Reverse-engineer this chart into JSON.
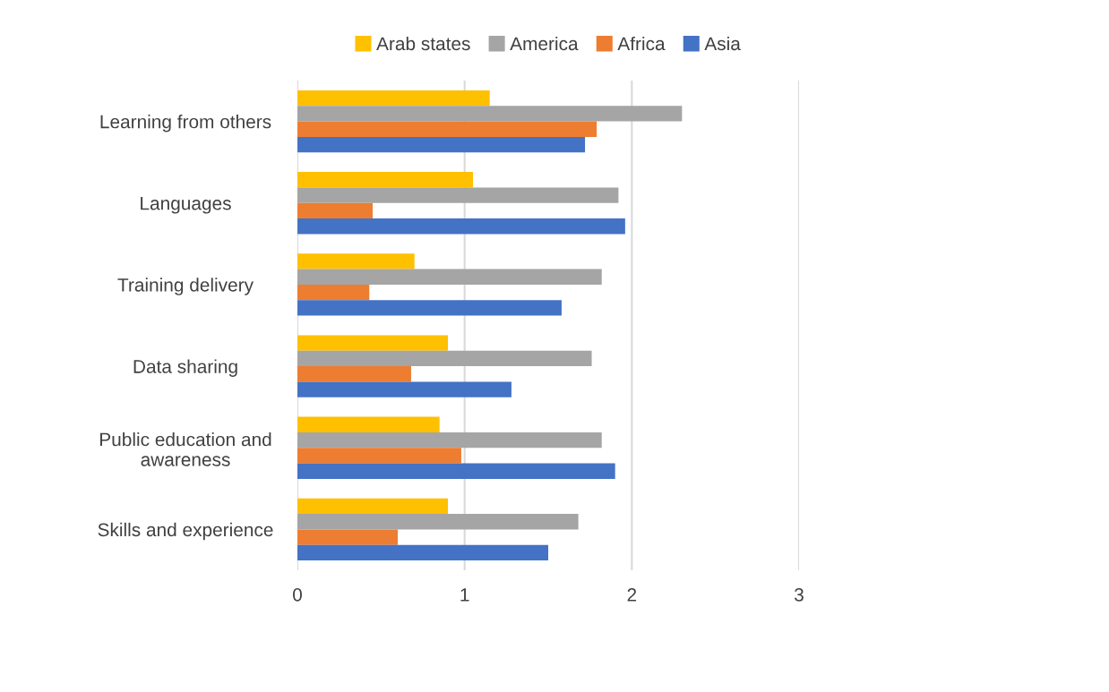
{
  "chart_data": {
    "type": "bar",
    "orientation": "horizontal",
    "categories": [
      "Learning from others",
      "Languages",
      "Training delivery",
      "Data sharing",
      "Public education and\nawareness",
      "Skills and experience"
    ],
    "series": [
      {
        "name": "Arab states",
        "color": "#ffc000",
        "values": [
          1.15,
          1.05,
          0.7,
          0.9,
          0.85,
          0.9
        ]
      },
      {
        "name": "America",
        "color": "#a5a5a5",
        "values": [
          2.3,
          1.92,
          1.82,
          1.76,
          1.82,
          1.68
        ]
      },
      {
        "name": "Africa",
        "color": "#ed7d31",
        "values": [
          1.79,
          0.45,
          0.43,
          0.68,
          0.98,
          0.6
        ]
      },
      {
        "name": "Asia",
        "color": "#4472c4",
        "values": [
          1.72,
          1.96,
          1.58,
          1.28,
          1.9,
          1.5
        ]
      }
    ],
    "xlim": [
      0,
      3
    ],
    "xticks": [
      0,
      1,
      2,
      3
    ],
    "grid": "x",
    "legend": "top"
  }
}
